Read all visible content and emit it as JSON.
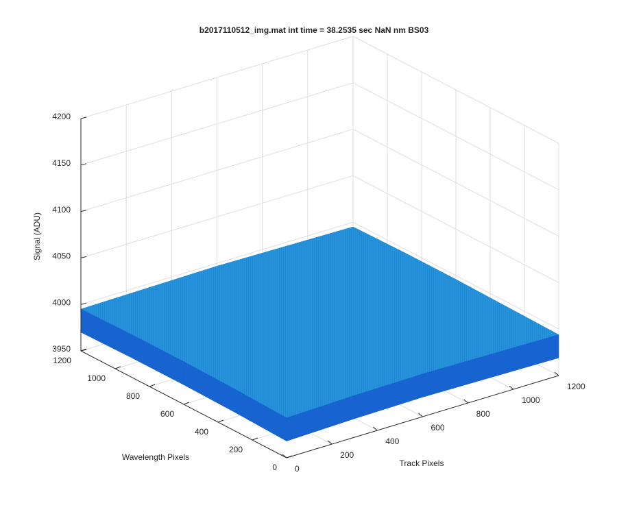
{
  "chart_data": {
    "type": "surface3d",
    "title": "b2017110512_img.mat int time = 38.2535 sec  NaN nm BS03",
    "xlabel": "Track Pixels",
    "ylabel": "Wavelength Pixels",
    "zlabel": "Signal (ADU)",
    "xlim": [
      0,
      1200
    ],
    "xticks": [
      0,
      200,
      400,
      600,
      800,
      1000,
      1200
    ],
    "ylim": [
      0,
      1200
    ],
    "yticks": [
      0,
      200,
      400,
      600,
      800,
      1000,
      1200
    ],
    "zlim": [
      3950,
      4200
    ],
    "zticks": [
      3950,
      4000,
      4050,
      4100,
      4150,
      4200
    ],
    "x": [
      0,
      300,
      600,
      900,
      1200
    ],
    "y": [
      0,
      300,
      600,
      900,
      1200
    ],
    "z": [
      [
        3993,
        3995,
        3996,
        3995,
        3994
      ],
      [
        3995,
        3997,
        3998,
        3997,
        3995
      ],
      [
        3996,
        3998,
        3999,
        3998,
        3996
      ],
      [
        3996,
        3998,
        3999,
        3998,
        3996
      ],
      [
        3995,
        3996,
        3997,
        3996,
        3995
      ]
    ],
    "color": "#1e8ad6",
    "side_color": "#1763cf",
    "grid": true
  }
}
